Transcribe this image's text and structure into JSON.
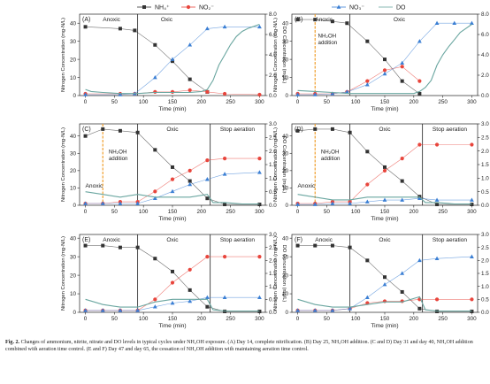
{
  "colors": {
    "nh4": "#333333",
    "no2": "#e8453c",
    "no3": "#3b7fd4",
    "do": "#6aa6a0",
    "nh2oh_line": "#f0a030"
  },
  "legend": [
    {
      "key": "nh4",
      "label": "NH₄⁺",
      "marker": "square"
    },
    {
      "key": "no2",
      "label": "NO₂⁻",
      "marker": "circle"
    },
    {
      "key": "no3",
      "label": "NO₃⁻",
      "marker": "triangle"
    },
    {
      "key": "do",
      "label": "DO",
      "marker": "line"
    }
  ],
  "caption": {
    "label": "Fig. 2.",
    "text": "Changes of ammonium, nitrite, nitrate and DO levels in typical cycles under NH₂OH exposure. (A) Day 14, complete nitrification. (B) Day 25, NH₂OH addition. (C and D) Day 31 and day 40, NH₂OH addition combined with aeration time control. (E and F) Day 47 and day 65, the cessation of NH₂OH addition with maintaining aeration time control."
  },
  "chart_data": [
    {
      "panel": "(A)",
      "type": "line",
      "xlabel": "Time (min)",
      "ylabel": "Nitrogen Concentration (mg-N/L)",
      "y2label": "DO Concentration (mg/L)",
      "xlim": [
        -10,
        310
      ],
      "ylim": [
        0,
        45
      ],
      "y2lim": [
        0,
        8.0
      ],
      "xticks": [
        0,
        50,
        100,
        150,
        200,
        250,
        300
      ],
      "yticks": [
        0,
        10,
        20,
        30,
        40
      ],
      "y2ticks": [
        "0.0",
        "2.0",
        "4.0",
        "6.0",
        "8.0"
      ],
      "y2tickvals": [
        0,
        2,
        4,
        6,
        8
      ],
      "phase_lines": [
        90
      ],
      "phases": [
        {
          "label": "Anoxic",
          "x": 45
        },
        {
          "label": "Oxic",
          "x": 140
        }
      ],
      "series": [
        {
          "key": "nh4",
          "x": [
            0,
            60,
            85,
            120,
            150,
            180,
            210
          ],
          "y": [
            38,
            37,
            36,
            28,
            19,
            9,
            2
          ]
        },
        {
          "key": "no2",
          "x": [
            0,
            60,
            85,
            120,
            150,
            180,
            210,
            240,
            300
          ],
          "y": [
            1,
            1,
            1,
            2,
            2,
            3,
            2,
            1,
            0.5
          ]
        },
        {
          "key": "no3",
          "x": [
            0,
            60,
            85,
            120,
            150,
            180,
            210,
            240,
            300
          ],
          "y": [
            0.5,
            0.5,
            1,
            10,
            20,
            28,
            37,
            38,
            38
          ]
        },
        {
          "key": "do",
          "axis": "y2",
          "x": [
            0,
            10,
            30,
            60,
            90,
            120,
            150,
            180,
            200,
            210,
            220,
            230,
            240,
            250,
            260,
            270,
            280,
            290,
            300
          ],
          "y": [
            0.6,
            0.4,
            0.3,
            0.2,
            0.2,
            0.3,
            0.3,
            0.3,
            0.4,
            0.6,
            1.5,
            3.0,
            4.0,
            5.0,
            5.8,
            6.3,
            6.6,
            6.8,
            7.0
          ]
        }
      ]
    },
    {
      "panel": "(B)",
      "type": "line",
      "xlabel": "Time (min)",
      "ylabel": "Nitrogen Concentration (mg-N/L)",
      "y2label": "DO Concentration (mg/L)",
      "xlim": [
        -10,
        310
      ],
      "ylim": [
        0,
        45
      ],
      "y2lim": [
        0,
        8.0
      ],
      "xticks": [
        0,
        50,
        100,
        150,
        200,
        250,
        300
      ],
      "yticks": [
        0,
        10,
        20,
        30,
        40
      ],
      "y2ticks": [
        "0.0",
        "2.0",
        "4.0",
        "6.0",
        "8.0"
      ],
      "y2tickvals": [
        0,
        2,
        4,
        6,
        8
      ],
      "phase_lines": [
        90
      ],
      "phases": [
        {
          "label": "Anoxic",
          "x": 45
        },
        {
          "label": "Oxic",
          "x": 175
        }
      ],
      "nh2oh_x": 30,
      "annotation": "NH₂OH\naddition",
      "annotation_x": 35,
      "annotation_y": 32,
      "series": [
        {
          "key": "nh4",
          "x": [
            0,
            30,
            60,
            85,
            120,
            150,
            180,
            210
          ],
          "y": [
            42,
            42,
            41,
            40,
            30,
            20,
            8,
            1
          ]
        },
        {
          "key": "no2",
          "x": [
            0,
            30,
            60,
            85,
            120,
            150,
            180,
            210
          ],
          "y": [
            1,
            1,
            1,
            2,
            8,
            14,
            16,
            8
          ]
        },
        {
          "key": "no3",
          "x": [
            0,
            30,
            60,
            85,
            120,
            150,
            180,
            210,
            240,
            270,
            300
          ],
          "y": [
            0.5,
            0.5,
            1,
            2,
            6,
            12,
            18,
            30,
            40,
            40,
            40
          ]
        },
        {
          "key": "do",
          "axis": "y2",
          "x": [
            0,
            30,
            60,
            90,
            120,
            150,
            180,
            200,
            210,
            220,
            230,
            240,
            250,
            260,
            270,
            280,
            290,
            300
          ],
          "y": [
            0.5,
            0.4,
            0.3,
            0.2,
            0.2,
            0.2,
            0.2,
            0.2,
            0.4,
            0.8,
            1.5,
            3.0,
            4.0,
            4.8,
            5.5,
            6.2,
            6.6,
            7.0
          ]
        }
      ]
    },
    {
      "panel": "(C)",
      "type": "line",
      "xlabel": "Time (min)",
      "ylabel": "Nitrogen Concentration (mg-N/L)",
      "y2label": "DO Concentration (mg/L)",
      "xlim": [
        -10,
        310
      ],
      "ylim": [
        0,
        47
      ],
      "y2lim": [
        0,
        3.0
      ],
      "xticks": [
        0,
        50,
        100,
        150,
        200,
        250,
        300
      ],
      "yticks": [
        0,
        10,
        20,
        30,
        40
      ],
      "y2ticks": [
        "0.0",
        "0.5",
        "1.0",
        "1.5",
        "2.0",
        "2.5",
        "3.0"
      ],
      "y2tickvals": [
        0,
        0.5,
        1,
        1.5,
        2,
        2.5,
        3
      ],
      "phase_lines": [
        90,
        215
      ],
      "phases": [
        {
          "label": "Anoxic",
          "x": 15,
          "y_frac": 0.78
        },
        {
          "label": "Oxic",
          "x": 150
        },
        {
          "label": "Stop aeration",
          "x": 262
        }
      ],
      "nh2oh_x": 30,
      "annotation": "NH₂OH\naddition",
      "annotation_x": 40,
      "annotation_y": 30,
      "series": [
        {
          "key": "nh4",
          "x": [
            0,
            30,
            60,
            90,
            120,
            150,
            180,
            210,
            240,
            300
          ],
          "y": [
            40,
            44,
            43,
            42,
            32,
            22,
            14,
            4,
            0.5,
            0.5
          ]
        },
        {
          "key": "no2",
          "x": [
            0,
            30,
            60,
            90,
            120,
            150,
            180,
            210,
            240,
            300
          ],
          "y": [
            1,
            1,
            2,
            2,
            8,
            15,
            20,
            26,
            27,
            27
          ]
        },
        {
          "key": "no3",
          "x": [
            0,
            30,
            60,
            90,
            120,
            150,
            180,
            210,
            240,
            300
          ],
          "y": [
            1,
            1,
            1,
            1,
            4,
            8,
            12,
            15,
            18,
            19
          ]
        },
        {
          "key": "do",
          "axis": "y2",
          "x": [
            0,
            30,
            60,
            90,
            120,
            150,
            180,
            210,
            220,
            240,
            270,
            300
          ],
          "y": [
            0.5,
            0.4,
            0.3,
            0.4,
            0.3,
            0.3,
            0.3,
            0.4,
            0.1,
            0.1,
            0.05,
            0.05
          ]
        }
      ]
    },
    {
      "panel": "(D)",
      "type": "line",
      "xlabel": "Time (min)",
      "ylabel": "Nitrogen Concentration (mg-N/L)",
      "y2label": "DO Concentration (mg/L)",
      "xlim": [
        -10,
        310
      ],
      "ylim": [
        0,
        47
      ],
      "y2lim": [
        0,
        3.0
      ],
      "xticks": [
        0,
        50,
        100,
        150,
        200,
        250,
        300
      ],
      "yticks": [
        0,
        10,
        20,
        30,
        40
      ],
      "y2ticks": [
        "0.0",
        "0.5",
        "1.0",
        "1.5",
        "2.0",
        "2.5",
        "3.0"
      ],
      "y2tickvals": [
        0,
        0.5,
        1,
        1.5,
        2,
        2.5,
        3
      ],
      "phase_lines": [
        90,
        215
      ],
      "phases": [
        {
          "label": "Anoxic",
          "x": 15,
          "y_frac": 0.78
        },
        {
          "label": "Oxic",
          "x": 150
        },
        {
          "label": "Stop aeration",
          "x": 262
        }
      ],
      "nh2oh_x": 30,
      "annotation": "NH₂OH\naddition",
      "annotation_x": 40,
      "annotation_y": 30,
      "series": [
        {
          "key": "nh4",
          "x": [
            0,
            30,
            60,
            90,
            120,
            150,
            180,
            210,
            240,
            300
          ],
          "y": [
            43,
            44,
            44,
            42,
            31,
            22,
            14,
            5,
            0.5,
            0.5
          ]
        },
        {
          "key": "no2",
          "x": [
            0,
            30,
            60,
            90,
            120,
            150,
            180,
            210,
            240,
            300
          ],
          "y": [
            1,
            1,
            2,
            2,
            12,
            20,
            27,
            35,
            35,
            35
          ]
        },
        {
          "key": "no3",
          "x": [
            0,
            30,
            60,
            90,
            120,
            150,
            180,
            210,
            240,
            300
          ],
          "y": [
            0.5,
            0.5,
            1,
            1,
            2,
            3,
            3,
            4,
            3,
            3
          ]
        },
        {
          "key": "do",
          "axis": "y2",
          "x": [
            0,
            30,
            60,
            90,
            120,
            150,
            180,
            210,
            220,
            240,
            270,
            300
          ],
          "y": [
            0.4,
            0.3,
            0.2,
            0.2,
            0.3,
            0.3,
            0.3,
            0.3,
            0.1,
            0.1,
            0.05,
            0.05
          ]
        }
      ]
    },
    {
      "panel": "(E)",
      "type": "line",
      "xlabel": "Time (min)",
      "ylabel": "Nitrogen Concentration (mg-N/L)",
      "y2label": "DO Concentration (mg/L)",
      "xlim": [
        -10,
        310
      ],
      "ylim": [
        0,
        42
      ],
      "y2lim": [
        0,
        3.0
      ],
      "xticks": [
        0,
        50,
        100,
        150,
        200,
        250,
        300
      ],
      "yticks": [
        0,
        10,
        20,
        30,
        40
      ],
      "y2ticks": [
        "0.0",
        "0.5",
        "1.0",
        "1.5",
        "2.0",
        "2.5",
        "3.0"
      ],
      "y2tickvals": [
        0,
        0.5,
        1,
        1.5,
        2,
        2.5,
        3
      ],
      "phase_lines": [
        90,
        215
      ],
      "phases": [
        {
          "label": "Anoxic",
          "x": 45
        },
        {
          "label": "Oxic",
          "x": 150
        },
        {
          "label": "Stop aeration",
          "x": 262
        }
      ],
      "series": [
        {
          "key": "nh4",
          "x": [
            0,
            30,
            60,
            90,
            120,
            150,
            180,
            210,
            240,
            300
          ],
          "y": [
            36,
            36,
            35,
            35,
            29,
            22,
            12,
            3,
            0.5,
            0.5
          ]
        },
        {
          "key": "no2",
          "x": [
            0,
            30,
            60,
            90,
            120,
            150,
            180,
            210,
            240,
            300
          ],
          "y": [
            1,
            1,
            1,
            1,
            7,
            16,
            23,
            30,
            30,
            30
          ]
        },
        {
          "key": "no3",
          "x": [
            0,
            30,
            60,
            90,
            120,
            150,
            180,
            210,
            240,
            300
          ],
          "y": [
            1,
            1,
            1,
            1,
            3,
            5,
            6,
            8,
            8,
            8
          ]
        },
        {
          "key": "do",
          "axis": "y2",
          "x": [
            0,
            30,
            60,
            90,
            120,
            150,
            180,
            210,
            220,
            240,
            270,
            300
          ],
          "y": [
            0.5,
            0.3,
            0.2,
            0.2,
            0.4,
            0.5,
            0.5,
            0.5,
            0.1,
            0.05,
            0.05,
            0.05
          ]
        }
      ]
    },
    {
      "panel": "(F)",
      "type": "line",
      "xlabel": "Time (min)",
      "ylabel": "Nitrogen Concentration (mg-N/L)",
      "y2label": "DO Concentration (mg/L)",
      "xlim": [
        -10,
        310
      ],
      "ylim": [
        0,
        42
      ],
      "y2lim": [
        0,
        3.0
      ],
      "xticks": [
        0,
        50,
        100,
        150,
        200,
        250,
        300
      ],
      "yticks": [
        0,
        10,
        20,
        30,
        40
      ],
      "y2ticks": [
        "0.0",
        "0.5",
        "1.0",
        "1.5",
        "2.0",
        "2.5",
        "3.0"
      ],
      "y2tickvals": [
        0,
        0.5,
        1,
        1.5,
        2,
        2.5,
        3
      ],
      "phase_lines": [
        90,
        215
      ],
      "phases": [
        {
          "label": "Anoxic",
          "x": 45
        },
        {
          "label": "Oxic",
          "x": 150
        },
        {
          "label": "Stop aeration",
          "x": 262
        }
      ],
      "series": [
        {
          "key": "nh4",
          "x": [
            0,
            30,
            60,
            90,
            120,
            150,
            180,
            210,
            240,
            300
          ],
          "y": [
            36,
            36,
            36,
            35,
            28,
            19,
            11,
            2,
            0.5,
            0.5
          ]
        },
        {
          "key": "no2",
          "x": [
            0,
            30,
            60,
            90,
            120,
            150,
            180,
            210,
            240,
            300
          ],
          "y": [
            1,
            1,
            1,
            2,
            5,
            6,
            6,
            7,
            7,
            7
          ]
        },
        {
          "key": "no3",
          "x": [
            0,
            30,
            60,
            90,
            120,
            150,
            180,
            210,
            240,
            300
          ],
          "y": [
            1,
            1,
            1,
            2,
            8,
            15,
            21,
            28,
            29,
            30
          ]
        },
        {
          "key": "do",
          "axis": "y2",
          "x": [
            0,
            30,
            60,
            90,
            120,
            150,
            180,
            210,
            220,
            240,
            270,
            300
          ],
          "y": [
            0.5,
            0.3,
            0.2,
            0.2,
            0.3,
            0.4,
            0.4,
            0.6,
            0.1,
            0.05,
            0.05,
            0.05
          ]
        }
      ]
    }
  ]
}
